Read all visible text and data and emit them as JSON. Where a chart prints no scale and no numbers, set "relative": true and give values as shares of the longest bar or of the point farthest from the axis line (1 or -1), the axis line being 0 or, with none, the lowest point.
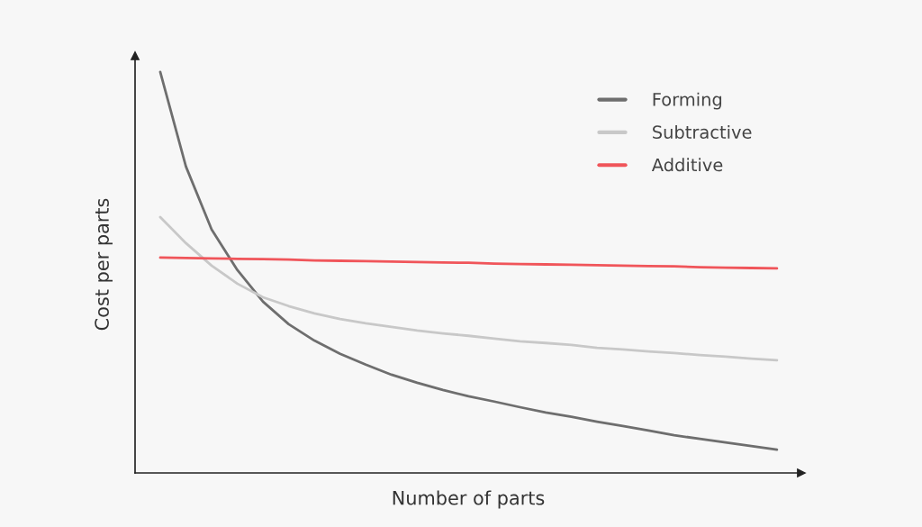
{
  "chart_data": {
    "type": "line",
    "relative": true,
    "xlabel": "Number of parts",
    "ylabel": "Cost per parts",
    "legend": "top right",
    "categories": [
      null,
      null,
      null,
      null,
      null,
      null,
      null,
      null,
      null,
      null,
      null,
      null,
      null,
      null,
      null,
      null,
      null,
      null,
      null,
      null,
      null,
      null,
      null,
      null,
      null
    ],
    "series": [
      {
        "name": "Forming",
        "color": "#6e6e6e",
        "values": [
          1.0,
          0.764,
          0.607,
          0.506,
          0.427,
          0.371,
          0.33,
          0.297,
          0.27,
          0.245,
          0.225,
          0.207,
          0.191,
          0.178,
          0.164,
          0.151,
          0.14,
          0.128,
          0.117,
          0.106,
          0.094,
          0.085,
          0.076,
          0.067,
          0.058
        ]
      },
      {
        "name": "Subtractive",
        "color": "#c8c8c8",
        "values": [
          0.638,
          0.573,
          0.517,
          0.472,
          0.438,
          0.416,
          0.398,
          0.384,
          0.373,
          0.364,
          0.355,
          0.348,
          0.342,
          0.335,
          0.328,
          0.324,
          0.319,
          0.312,
          0.308,
          0.303,
          0.299,
          0.294,
          0.29,
          0.285,
          0.281
        ]
      },
      {
        "name": "Additive",
        "color": "#f0555a",
        "values": [
          0.537,
          0.536,
          0.535,
          0.534,
          0.533,
          0.532,
          0.53,
          0.529,
          0.528,
          0.527,
          0.526,
          0.525,
          0.524,
          0.522,
          0.521,
          0.52,
          0.519,
          0.518,
          0.517,
          0.516,
          0.515,
          0.513,
          0.512,
          0.511,
          0.51
        ]
      }
    ]
  }
}
